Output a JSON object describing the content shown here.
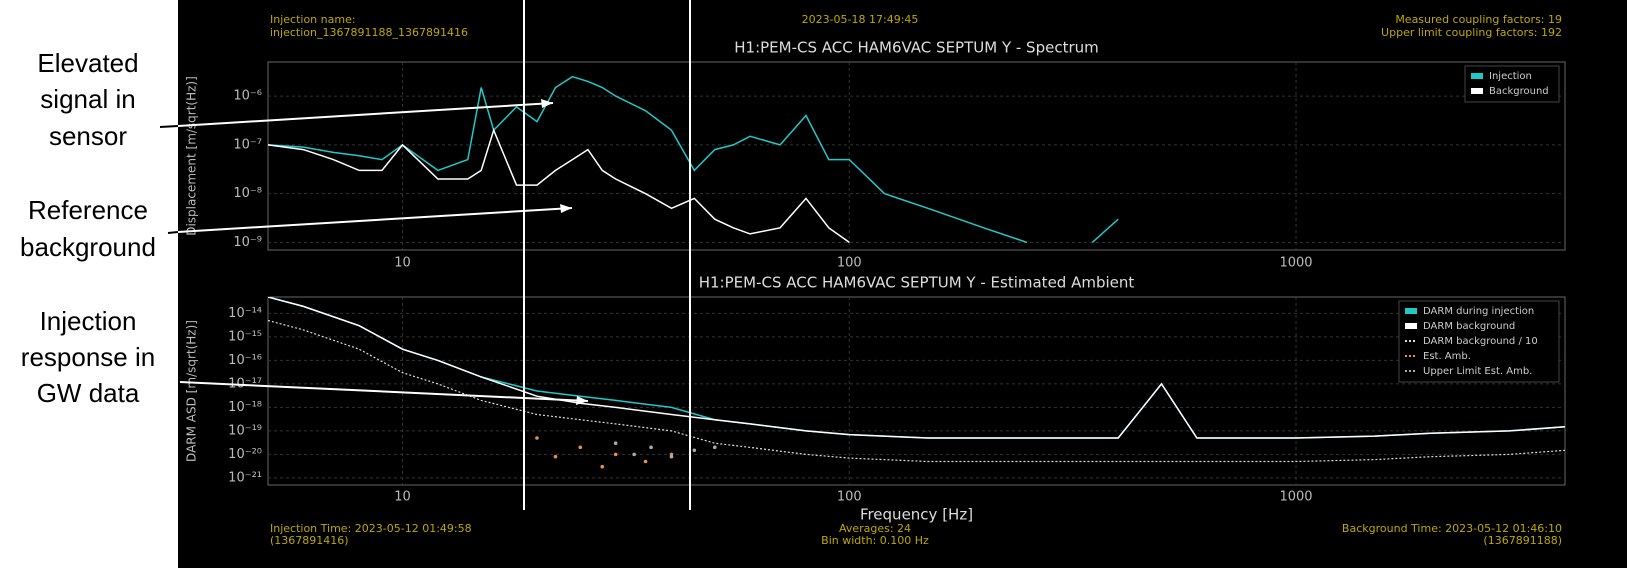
{
  "header": {
    "injection_label": "Injection name:",
    "injection_name": "injection_1367891188_1367891416",
    "timestamp": "2023-05-18 17:49:45",
    "measured": "Measured coupling factors: 19",
    "upper_limit": "Upper limit coupling factors: 192"
  },
  "footer": {
    "injection_time": "Injection Time: 2023-05-12 01:49:58",
    "injection_gps": "(1367891416)",
    "averages": "Averages: 24",
    "bin_width": "Bin width: 0.100 Hz",
    "background_time": "Background Time: 2023-05-12 01:46:10",
    "background_gps": "(1367891188)"
  },
  "annotations": [
    {
      "lines": [
        "Elevated",
        "signal in",
        "sensor"
      ]
    },
    {
      "lines": [
        "Reference",
        "background"
      ]
    },
    {
      "lines": [
        "Injection",
        "response in",
        "GW data"
      ]
    }
  ],
  "chart_data": [
    {
      "type": "line",
      "title": "H1:PEM-CS ACC HAM6VAC SEPTUM Y - Spectrum",
      "y_label": "Displacement [m/sqrt(Hz)]",
      "x_scale": "log",
      "y_scale": "log",
      "grid": true,
      "legend": "upper right",
      "xlim": [
        5,
        4000
      ],
      "xticks": [
        10,
        100,
        1000
      ],
      "ylim": [
        7e-10,
        5e-06
      ],
      "yticks": [
        {
          "value": 1e-09,
          "label": "10⁻⁹"
        },
        {
          "value": 1e-08,
          "label": "10⁻⁸"
        },
        {
          "value": 1e-07,
          "label": "10⁻⁷"
        },
        {
          "value": 1e-06,
          "label": "10⁻⁶"
        }
      ],
      "x": [
        5,
        6,
        7,
        8,
        9,
        10,
        12,
        14,
        15,
        16,
        18,
        20,
        22,
        24,
        26,
        28,
        30,
        35,
        40,
        45,
        50,
        55,
        60,
        70,
        80,
        90,
        100,
        120,
        150,
        200,
        250,
        300,
        350,
        400
      ],
      "series": [
        {
          "name": "Injection",
          "color": "#22c8c8",
          "style": "solid",
          "values": [
            1e-07,
            9e-08,
            7e-08,
            6e-08,
            5e-08,
            1e-07,
            3e-08,
            5e-08,
            1.5e-06,
            2e-07,
            6e-07,
            3e-07,
            1.5e-06,
            2.5e-06,
            2e-06,
            1.5e-06,
            1e-06,
            5e-07,
            2e-07,
            3e-08,
            8e-08,
            1e-07,
            1.5e-07,
            1e-07,
            4e-07,
            5e-08,
            5e-08,
            1e-08,
            5e-09,
            2e-09,
            1e-09,
            null,
            1e-09,
            3e-09
          ]
        },
        {
          "name": "Background",
          "color": "#ffffff",
          "style": "solid",
          "values": [
            1e-07,
            8e-08,
            5e-08,
            3e-08,
            3e-08,
            1e-07,
            2e-08,
            2e-08,
            3e-08,
            2e-07,
            1.5e-08,
            1.5e-08,
            3e-08,
            5e-08,
            8e-08,
            3e-08,
            2e-08,
            1e-08,
            5e-09,
            8e-09,
            3e-09,
            2e-09,
            1.5e-09,
            2e-09,
            8e-09,
            2e-09,
            1e-09,
            null,
            null,
            null,
            null,
            null,
            null,
            null
          ]
        }
      ]
    },
    {
      "type": "line",
      "title": "H1:PEM-CS ACC HAM6VAC SEPTUM Y - Estimated Ambient",
      "y_label": "DARM ASD [m/sqrt(Hz)]",
      "x_label": "Frequency [Hz]",
      "x_scale": "log",
      "y_scale": "log",
      "grid": true,
      "legend": "upper right",
      "xlim": [
        5,
        4000
      ],
      "xticks": [
        10,
        100,
        1000
      ],
      "ylim": [
        5e-22,
        5e-14
      ],
      "yticks": [
        {
          "value": 1e-21,
          "label": "10⁻²¹"
        },
        {
          "value": 1e-20,
          "label": "10⁻²⁰"
        },
        {
          "value": 1e-19,
          "label": "10⁻¹⁹"
        },
        {
          "value": 1e-18,
          "label": "10⁻¹⁸"
        },
        {
          "value": 1e-17,
          "label": "10⁻¹⁷"
        },
        {
          "value": 1e-16,
          "label": "10⁻¹⁶"
        },
        {
          "value": 1e-15,
          "label": "10⁻¹⁵"
        },
        {
          "value": 1e-14,
          "label": "10⁻¹⁴"
        }
      ],
      "x": [
        5,
        6,
        8,
        10,
        12,
        15,
        20,
        25,
        30,
        40,
        50,
        60,
        80,
        100,
        150,
        200,
        300,
        400,
        500,
        600,
        1000,
        1500,
        2000,
        3000,
        4000
      ],
      "series": [
        {
          "name": "DARM during injection",
          "color": "#22c8c8",
          "style": "solid",
          "values": [
            5e-14,
            2e-14,
            3e-15,
            3e-16,
            1e-16,
            2e-17,
            5e-18,
            3e-18,
            2e-18,
            1e-18,
            3e-19,
            2e-19,
            1e-19,
            7e-20,
            5e-20,
            5e-20,
            5e-20,
            5e-20,
            1e-17,
            5e-20,
            5e-20,
            6e-20,
            8e-20,
            1e-19,
            1.5e-19
          ]
        },
        {
          "name": "DARM background",
          "color": "#ffffff",
          "style": "solid",
          "values": [
            5e-14,
            2e-14,
            3e-15,
            3e-16,
            1e-16,
            2e-17,
            3e-18,
            1.5e-18,
            1e-18,
            5e-19,
            3e-19,
            2e-19,
            1e-19,
            7e-20,
            5e-20,
            5e-20,
            5e-20,
            5e-20,
            1e-17,
            5e-20,
            5e-20,
            6e-20,
            8e-20,
            1e-19,
            1.5e-19
          ]
        },
        {
          "name": "DARM background / 10",
          "color": "#dddddd",
          "style": "dotted",
          "values": [
            5e-15,
            2e-15,
            3e-16,
            3e-17,
            1e-17,
            2e-18,
            5e-19,
            3e-19,
            2e-19,
            1e-19,
            3e-20,
            2e-20,
            1e-20,
            7e-21,
            5e-21,
            5e-21,
            5e-21,
            5e-21,
            5e-21,
            5e-21,
            5e-21,
            6e-21,
            8e-21,
            1e-20,
            1.5e-20
          ]
        },
        {
          "name": "Est. Amb.",
          "color": "#e8904a",
          "style": "dots",
          "x": [
            20,
            22,
            25,
            28,
            30,
            35,
            40
          ],
          "values": [
            5e-20,
            8e-21,
            2e-20,
            3e-21,
            1e-20,
            5e-21,
            1e-20
          ]
        },
        {
          "name": "Upper Limit Est. Amb.",
          "color": "#aaaaaa",
          "style": "dots",
          "x": [
            30,
            33,
            36,
            40,
            45,
            50
          ],
          "values": [
            3e-20,
            1e-20,
            2e-20,
            8e-21,
            1.5e-20,
            2e-20
          ]
        }
      ]
    }
  ]
}
